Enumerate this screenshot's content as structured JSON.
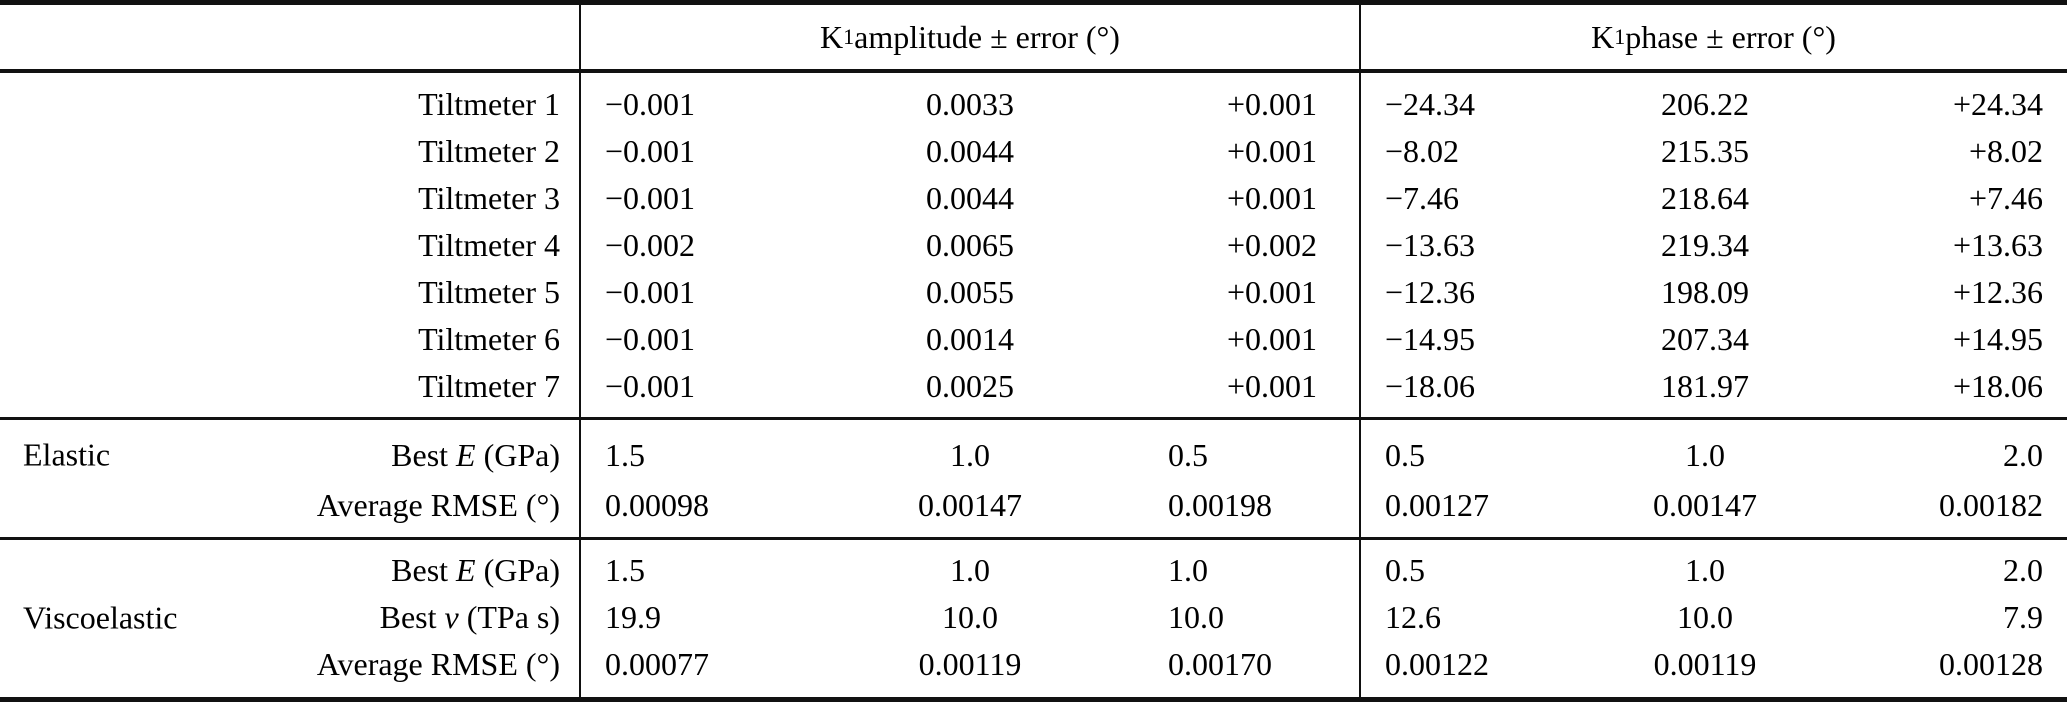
{
  "table": {
    "col_headers": [
      {
        "base": "K",
        "sub": "1",
        "rest": " amplitude ± error (°)"
      },
      {
        "base": "K",
        "sub": "1",
        "rest": " phase ± error (°)"
      }
    ],
    "tiltmeters": [
      {
        "label": "Tiltmeter 1",
        "amp": [
          "−0.001",
          "0.0033",
          "+0.001"
        ],
        "phase": [
          "−24.34",
          "206.22",
          "+24.34"
        ]
      },
      {
        "label": "Tiltmeter 2",
        "amp": [
          "−0.001",
          "0.0044",
          "+0.001"
        ],
        "phase": [
          "−8.02",
          "215.35",
          "+8.02"
        ]
      },
      {
        "label": "Tiltmeter 3",
        "amp": [
          "−0.001",
          "0.0044",
          "+0.001"
        ],
        "phase": [
          "−7.46",
          "218.64",
          "+7.46"
        ]
      },
      {
        "label": "Tiltmeter 4",
        "amp": [
          "−0.002",
          "0.0065",
          "+0.002"
        ],
        "phase": [
          "−13.63",
          "219.34",
          "+13.63"
        ]
      },
      {
        "label": "Tiltmeter 5",
        "amp": [
          "−0.001",
          "0.0055",
          "+0.001"
        ],
        "phase": [
          "−12.36",
          "198.09",
          "+12.36"
        ]
      },
      {
        "label": "Tiltmeter 6",
        "amp": [
          "−0.001",
          "0.0014",
          "+0.001"
        ],
        "phase": [
          "−14.95",
          "207.34",
          "+14.95"
        ]
      },
      {
        "label": "Tiltmeter 7",
        "amp": [
          "−0.001",
          "0.0025",
          "+0.001"
        ],
        "phase": [
          "−18.06",
          "181.97",
          "+18.06"
        ]
      }
    ],
    "elastic": {
      "group_label": "Elastic",
      "rows": [
        {
          "label_pre": "Best ",
          "label_it": "E",
          "label_post": " (GPa)",
          "amp": [
            "1.5",
            "1.0",
            "0.5"
          ],
          "phase": [
            "0.5",
            "1.0",
            "2.0"
          ]
        },
        {
          "label_pre": "Average RMSE (°)",
          "label_it": "",
          "label_post": "",
          "amp": [
            "0.00098",
            "0.00147",
            "0.00198"
          ],
          "phase": [
            "0.00127",
            "0.00147",
            "0.00182"
          ]
        }
      ]
    },
    "viscoelastic": {
      "group_label": "Viscoelastic",
      "rows": [
        {
          "label_pre": "Best ",
          "label_it": "E",
          "label_post": " (GPa)",
          "amp": [
            "1.5",
            "1.0",
            "1.0"
          ],
          "phase": [
            "0.5",
            "1.0",
            "2.0"
          ]
        },
        {
          "label_pre": "Best ",
          "label_it": "ν",
          "label_post": " (TPa s)",
          "amp": [
            "19.9",
            "10.0",
            "10.0"
          ],
          "phase": [
            "12.6",
            "10.0",
            "7.9"
          ]
        },
        {
          "label_pre": "Average RMSE (°)",
          "label_it": "",
          "label_post": "",
          "amp": [
            "0.00077",
            "0.00119",
            "0.00170"
          ],
          "phase": [
            "0.00122",
            "0.00119",
            "0.00128"
          ]
        }
      ]
    }
  }
}
